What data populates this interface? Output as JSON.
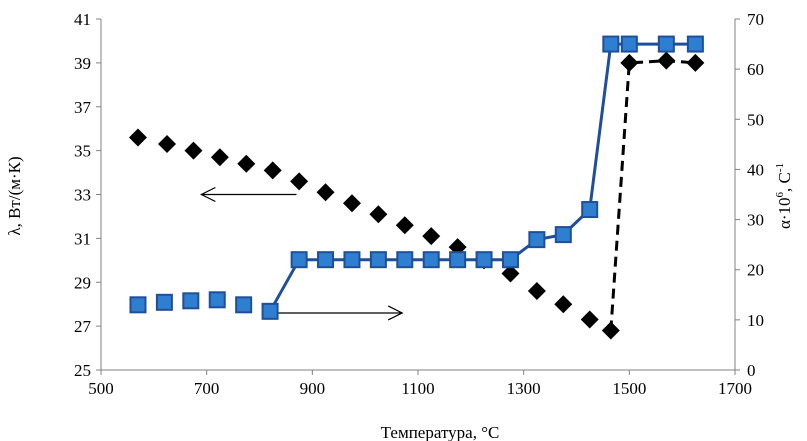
{
  "chart_data": {
    "type": "line",
    "xlabel": "Температура, °C",
    "ylabel_left": "λ, Вт/(м·К)",
    "ylabel_right": {
      "base": "α·10",
      "exp": "6",
      "unit": ", С",
      "unit_exp": "-1"
    },
    "xlim": [
      500,
      1700
    ],
    "ylim_left": [
      25,
      41
    ],
    "ylim_right": [
      0,
      70
    ],
    "x_ticks": [
      500,
      700,
      900,
      1100,
      1300,
      1500,
      1700
    ],
    "y_left_ticks": [
      25,
      27,
      29,
      31,
      33,
      35,
      37,
      39,
      41
    ],
    "y_right_ticks": [
      0,
      10,
      20,
      30,
      40,
      50,
      60,
      70
    ],
    "grid": false,
    "series": [
      {
        "axis": "left",
        "marker": "diamond",
        "color": "#000000",
        "x": [
          570,
          625,
          675,
          725,
          775,
          825,
          875,
          925,
          975,
          1025,
          1075,
          1125,
          1175,
          1225,
          1275,
          1325,
          1375,
          1425,
          1465,
          1500,
          1570,
          1625
        ],
        "y": [
          35.6,
          35.3,
          35.0,
          34.7,
          34.4,
          34.1,
          33.6,
          33.1,
          32.6,
          32.1,
          31.6,
          31.1,
          30.6,
          30.0,
          29.4,
          28.6,
          28.0,
          27.3,
          26.8,
          39.0,
          39.1,
          39.0
        ],
        "segments": [
          {
            "from": 18,
            "to": 21,
            "style": "dashed"
          }
        ]
      },
      {
        "axis": "right",
        "marker": "square",
        "color": "#1f4e9a",
        "marker_fill": "#2f7fd1",
        "x": [
          570,
          620,
          670,
          720,
          770,
          820,
          875,
          925,
          975,
          1025,
          1075,
          1125,
          1175,
          1225,
          1275,
          1325,
          1375,
          1425,
          1465,
          1500,
          1570,
          1625
        ],
        "y": [
          13,
          13.5,
          13.8,
          14,
          13,
          11.7,
          22,
          22,
          22,
          22,
          22,
          22,
          22,
          22,
          22,
          26,
          27,
          32,
          65,
          65,
          65,
          65
        ],
        "segments": [
          {
            "from": 5,
            "to": 21,
            "style": "solid"
          }
        ]
      }
    ],
    "annotations": [
      {
        "type": "arrow",
        "direction": "left",
        "points_to": "left-axis",
        "from": [
          870,
          33
        ],
        "to": [
          690,
          33
        ]
      },
      {
        "type": "arrow",
        "direction": "right",
        "points_to": "right-axis",
        "from": [
          830,
          27.6
        ],
        "to": [
          1070,
          27.6
        ]
      }
    ]
  }
}
